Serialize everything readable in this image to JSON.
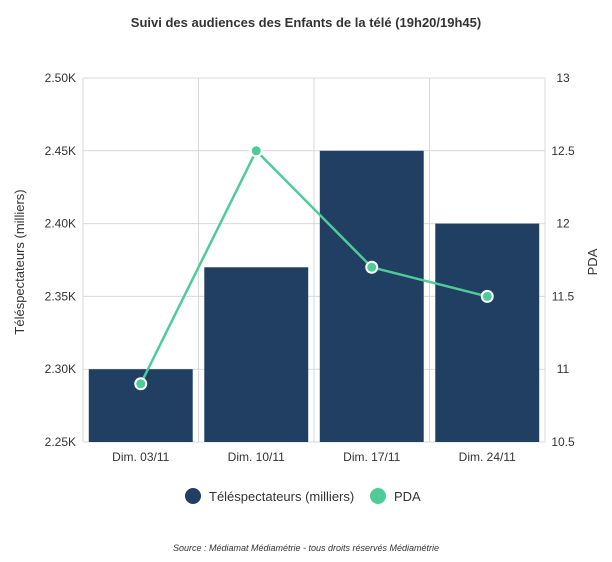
{
  "chart_data": {
    "type": "bar",
    "title": "Suivi des audiences des Enfants de la télé (19h20/19h45)",
    "categories": [
      "Dim. 03/11",
      "Dim. 10/11",
      "Dim. 17/11",
      "Dim. 24/11"
    ],
    "series": [
      {
        "name": "Téléspectateurs (milliers)",
        "type": "bar",
        "axis": "left",
        "color": "#203f63",
        "values": [
          2300,
          2370,
          2450,
          2400
        ]
      },
      {
        "name": "PDA",
        "type": "line",
        "axis": "right",
        "color": "#4fcb9a",
        "values": [
          10.9,
          12.5,
          11.7,
          11.5
        ]
      }
    ],
    "ylabel": "Téléspectateurs (milliers)",
    "y2label": "PDA",
    "ylim": [
      2250,
      2500
    ],
    "y2lim": [
      10.5,
      13
    ],
    "yticks": [
      "2.25K",
      "2.30K",
      "2.35K",
      "2.40K",
      "2.45K",
      "2.50K"
    ],
    "y2ticks": [
      "10.5",
      "11",
      "11.5",
      "12",
      "12.5",
      "13"
    ],
    "grid": true,
    "legend": "bottom-center"
  },
  "source": "Source : Médiamat Médiamétrie - tous droits réservés Médiamétrie"
}
